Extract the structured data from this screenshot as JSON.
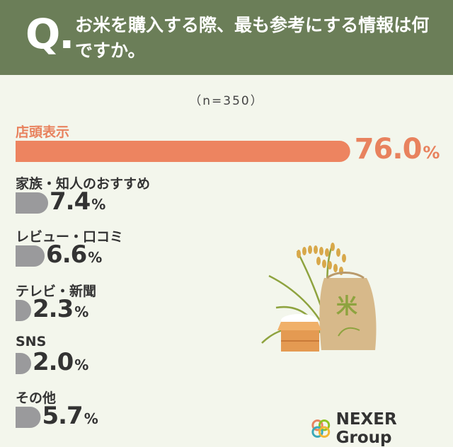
{
  "header": {
    "q_mark": "Q.",
    "title": "お米を購入する際、最も参考にする情報は何ですか。"
  },
  "sample_note": "（n=350）",
  "chart_data": {
    "type": "bar",
    "title": "お米を購入する際、最も参考にする情報は何ですか。",
    "categories": [
      "店頭表示",
      "家族・知人のおすすめ",
      "レビュー・口コミ",
      "テレビ・新聞",
      "SNS",
      "その他"
    ],
    "values": [
      76.0,
      7.4,
      6.6,
      2.3,
      2.0,
      5.7
    ],
    "value_labels": [
      "76.0",
      "7.4",
      "6.6",
      "2.3",
      "2.0",
      "5.7"
    ],
    "unit": "%",
    "colors": {
      "highlight": "#ed8460",
      "default": "#9a9a9c"
    },
    "xlim": [
      0,
      100
    ],
    "grid": false
  },
  "brand": {
    "name": "NEXER Group",
    "colors": [
      "#e8825e",
      "#8fc31f",
      "#f2b632",
      "#3aa9b8"
    ]
  },
  "illustration": {
    "sack_label": "米",
    "colors": {
      "sack": "#d7b98a",
      "box": "#e49a52",
      "grain": "#d8a84a",
      "leaf": "#8ea33f"
    }
  }
}
